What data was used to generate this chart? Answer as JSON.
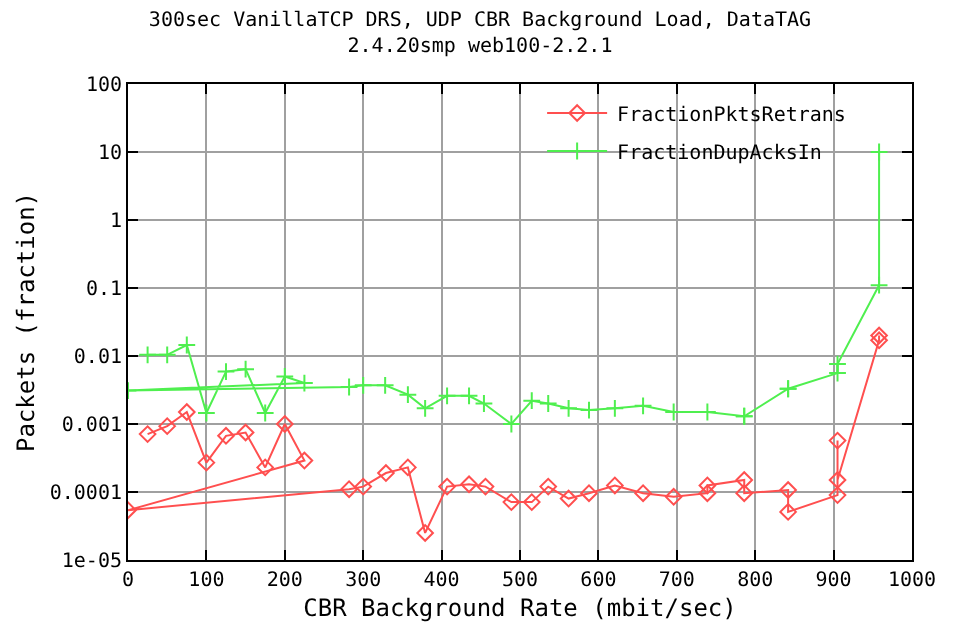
{
  "chart_data": {
    "type": "line",
    "title": "300sec VanillaTCP DRS, UDP CBR Background Load, DataTAG",
    "subtitle": "2.4.20smp web100-2.2.1",
    "xlabel": "CBR Background Rate (mbit/sec)",
    "ylabel": "Packets (fraction)",
    "log": "y",
    "grid": true,
    "legend": "top right",
    "xlim": [
      0,
      1000
    ],
    "xticks": [
      0,
      100,
      200,
      300,
      400,
      500,
      600,
      700,
      800,
      900,
      1000
    ],
    "ylim": [
      1e-05,
      100
    ],
    "yticks": [
      {
        "value": 1e-05,
        "label": "1e-05"
      },
      0.0001,
      0.001,
      0.01,
      0.1,
      1,
      10,
      100
    ],
    "series": [
      {
        "name": "FractionPktsRetrans",
        "color": "#ff4f4f",
        "marker": "diamond",
        "x": [
          25,
          50,
          75,
          100,
          125,
          150,
          175,
          200,
          225,
          0,
          282,
          300,
          329,
          357,
          379,
          407,
          435,
          456,
          489,
          515,
          536,
          562,
          588,
          621,
          657,
          696,
          739,
          739,
          786,
          786,
          842,
          842,
          905,
          905,
          905,
          958,
          958
        ],
        "values": [
          0.00071,
          0.00093,
          0.0015,
          0.00027,
          0.00067,
          0.00075,
          0.00023,
          0.001,
          0.00029,
          5.4e-05,
          0.00011,
          0.00012,
          0.00019,
          0.00023,
          2.5e-05,
          0.00012,
          0.00013,
          0.00012,
          7.1e-05,
          7.1e-05,
          0.00012,
          8e-05,
          9.6e-05,
          0.000125,
          9.6e-05,
          8.5e-05,
          9.6e-05,
          0.000125,
          0.00015,
          9.6e-05,
          0.000107,
          5.1e-05,
          9e-05,
          0.00057,
          0.00015,
          0.017,
          0.02
        ]
      },
      {
        "name": "FractionDupAcksIn",
        "color": "#4fef4f",
        "marker": "cross",
        "x": [
          25,
          50,
          75,
          100,
          125,
          150,
          175,
          200,
          225,
          0,
          282,
          300,
          328,
          357,
          379,
          407,
          435,
          454,
          489,
          515,
          536,
          562,
          588,
          621,
          657,
          696,
          739,
          786,
          786,
          842,
          842,
          905,
          905,
          958,
          958
        ],
        "values": [
          0.0104,
          0.0104,
          0.0145,
          0.00145,
          0.0059,
          0.0064,
          0.00145,
          0.005,
          0.004,
          0.0031,
          0.0035,
          0.0037,
          0.0037,
          0.0027,
          0.0017,
          0.0026,
          0.0026,
          0.002,
          0.001,
          0.0022,
          0.002,
          0.0017,
          0.0016,
          0.0017,
          0.00185,
          0.0015,
          0.0015,
          0.0013,
          0.0013,
          0.0033,
          0.0033,
          0.0056,
          0.0076,
          0.11,
          10
        ]
      }
    ]
  }
}
